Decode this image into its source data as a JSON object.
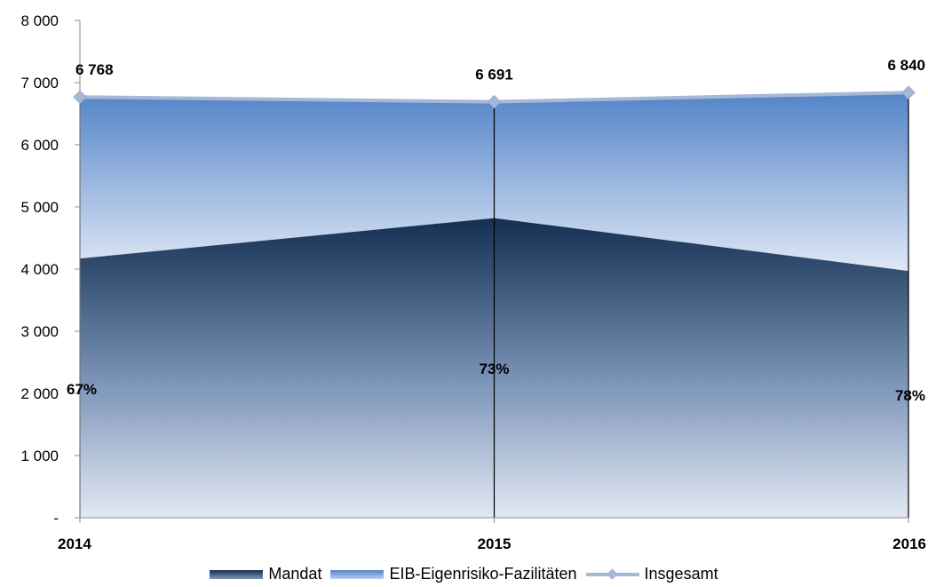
{
  "chart_data": {
    "type": "area",
    "categories": [
      "2014",
      "2015",
      "2016"
    ],
    "series": [
      {
        "name": "Mandat",
        "values": [
          4170,
          4820,
          3970
        ],
        "color": "#1a365d"
      },
      {
        "name": "EIB-Eigenrisiko-Fazilitäten",
        "values": [
          2598,
          1871,
          2870
        ],
        "color": "#5b8fd3"
      },
      {
        "name": "Insgesamt",
        "values": [
          6768,
          6691,
          6840
        ],
        "color": "#a6b8d6"
      }
    ],
    "total_labels": [
      "6 768",
      "6 691",
      "6 840"
    ],
    "percent_labels": [
      "67%",
      "73%",
      "78%"
    ],
    "yticks": [
      {
        "value": 0,
        "label": "-"
      },
      {
        "value": 1000,
        "label": "1 000"
      },
      {
        "value": 2000,
        "label": "2 000"
      },
      {
        "value": 3000,
        "label": "3 000"
      },
      {
        "value": 4000,
        "label": "4 000"
      },
      {
        "value": 5000,
        "label": "5 000"
      },
      {
        "value": 6000,
        "label": "6 000"
      },
      {
        "value": 7000,
        "label": "7 000"
      },
      {
        "value": 8000,
        "label": "8 000"
      }
    ],
    "ylim": [
      0,
      8000
    ],
    "grid": false,
    "legend_position": "bottom"
  },
  "legend": {
    "items": [
      "Mandat",
      "EIB-Eigenrisiko-Fazilitäten",
      "Insgesamt"
    ]
  }
}
